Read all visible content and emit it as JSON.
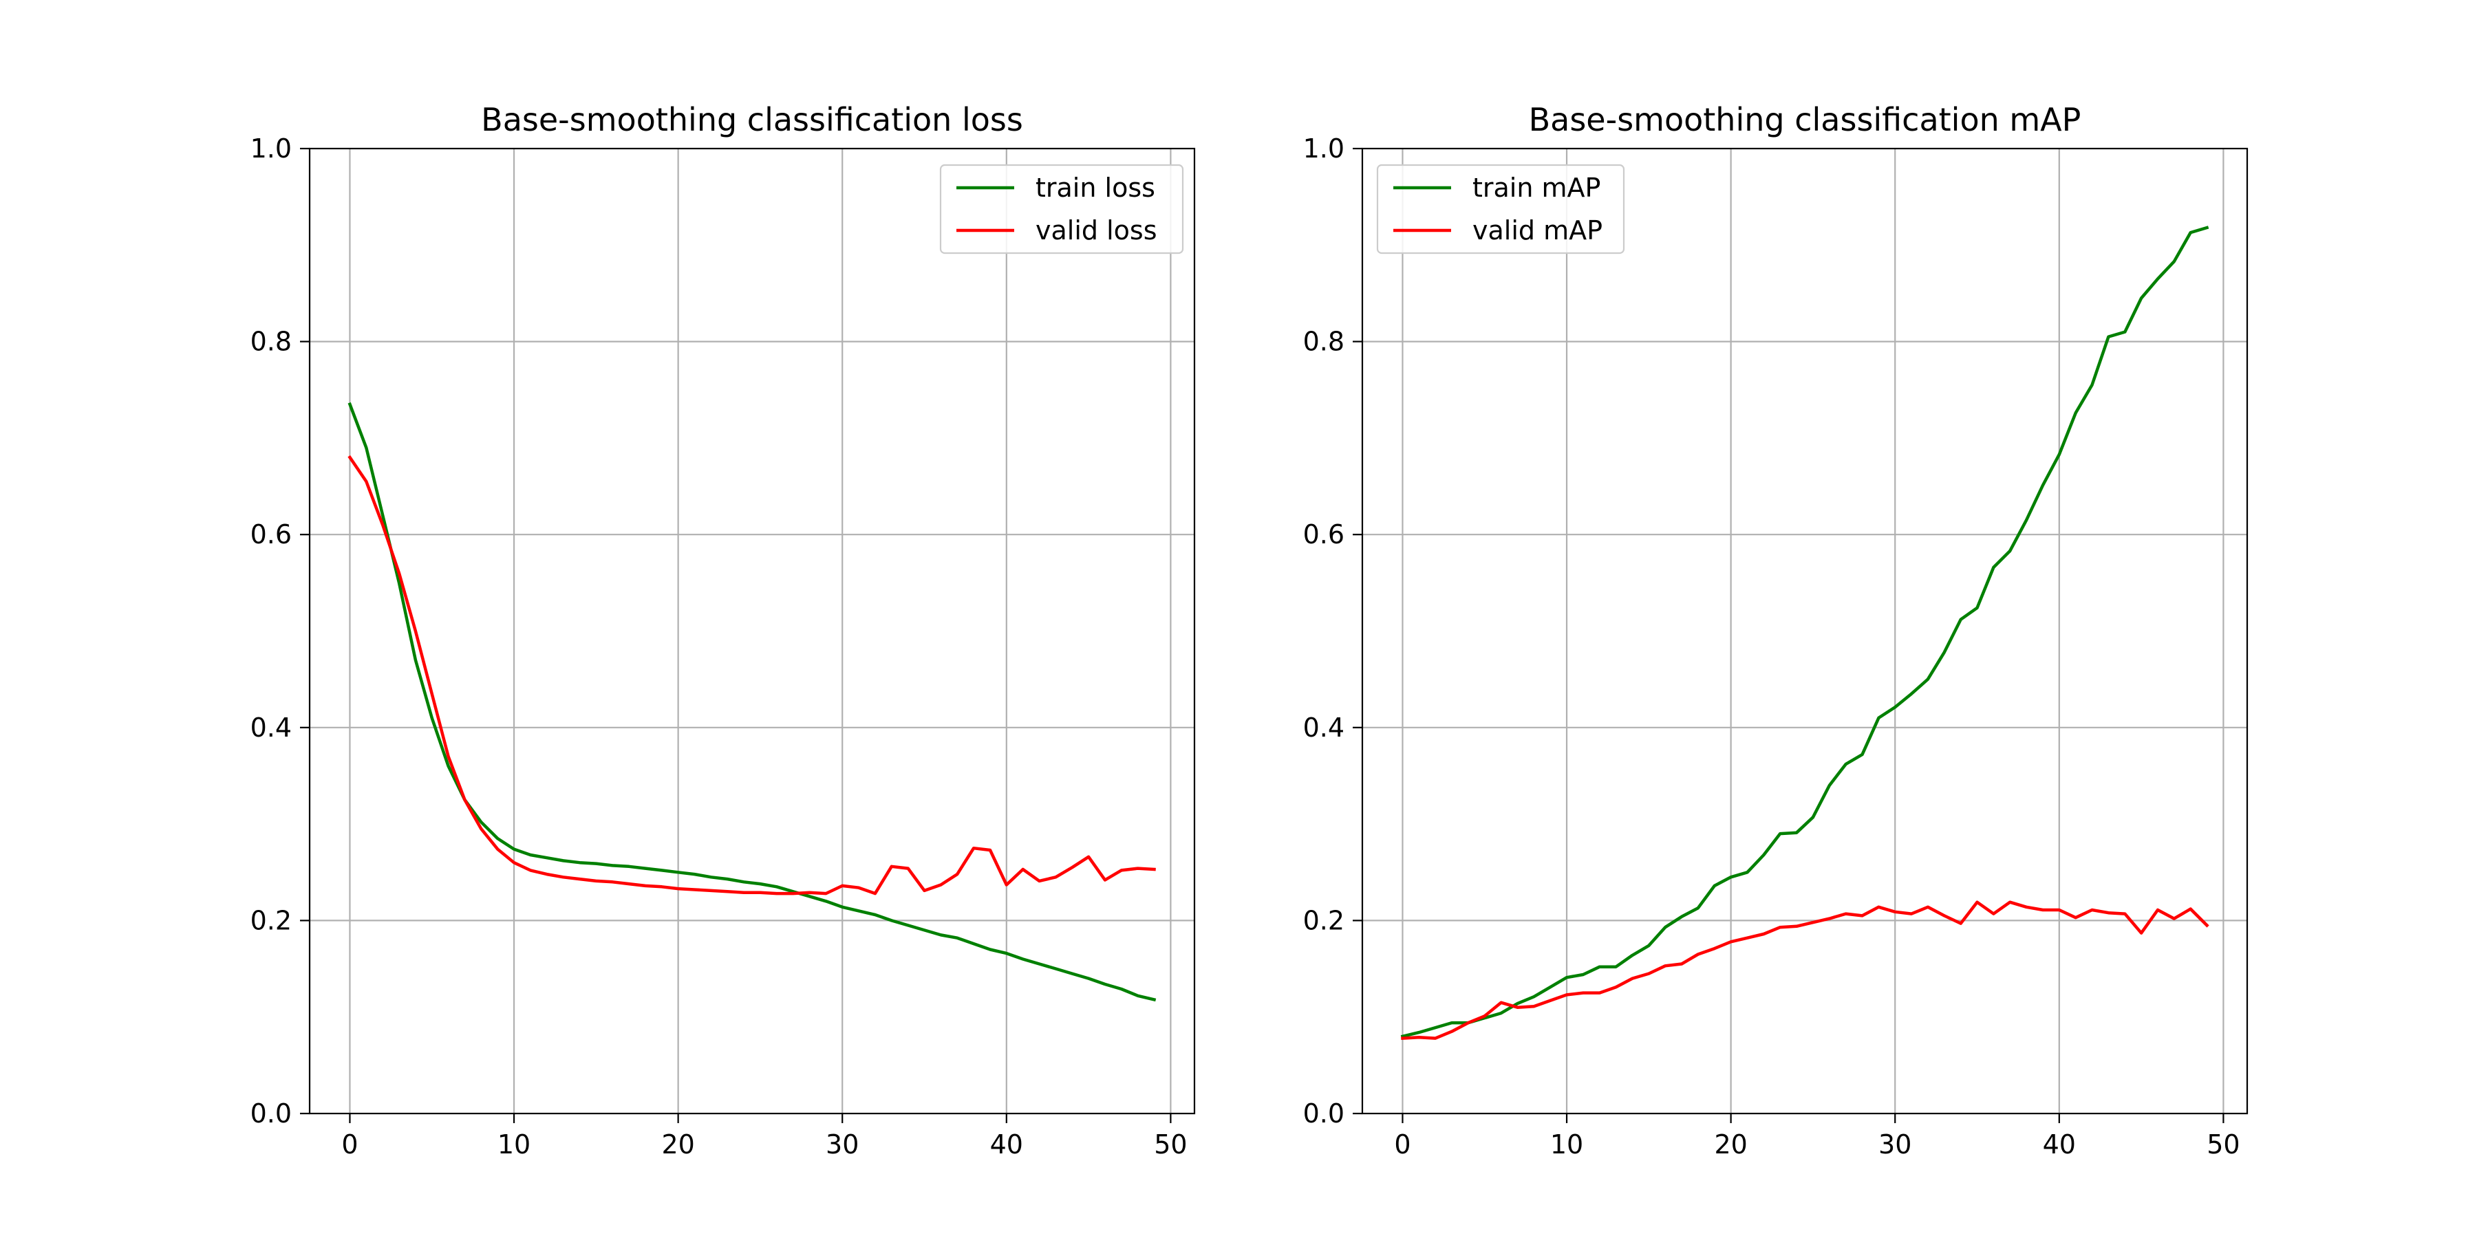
{
  "chart_data": [
    {
      "type": "line",
      "title": "Base-smoothing classification loss",
      "xlabel": "",
      "ylabel": "",
      "xlim": [
        -2.45,
        51.45
      ],
      "ylim": [
        0,
        1.0
      ],
      "xticks": [
        "0",
        "10",
        "20",
        "30",
        "40",
        "50"
      ],
      "yticks": [
        "0.0",
        "0.2",
        "0.4",
        "0.6",
        "0.8",
        "1.0"
      ],
      "grid": true,
      "legend_position": "upper right",
      "x": [
        0,
        1,
        2,
        3,
        4,
        5,
        6,
        7,
        8,
        9,
        10,
        11,
        12,
        13,
        14,
        15,
        16,
        17,
        18,
        19,
        20,
        21,
        22,
        23,
        24,
        25,
        26,
        27,
        28,
        29,
        30,
        31,
        32,
        33,
        34,
        35,
        36,
        37,
        38,
        39,
        40,
        41,
        42,
        43,
        44,
        45,
        46,
        47,
        48,
        49
      ],
      "series": [
        {
          "name": "train loss",
          "color": "#008000",
          "values": [
            0.735,
            0.69,
            0.62,
            0.55,
            0.47,
            0.41,
            0.36,
            0.325,
            0.302,
            0.285,
            0.274,
            0.268,
            0.265,
            0.262,
            0.26,
            0.259,
            0.257,
            0.256,
            0.254,
            0.252,
            0.25,
            0.248,
            0.245,
            0.243,
            0.24,
            0.238,
            0.235,
            0.23,
            0.225,
            0.22,
            0.214,
            0.21,
            0.206,
            0.2,
            0.195,
            0.19,
            0.185,
            0.182,
            0.176,
            0.17,
            0.166,
            0.16,
            0.155,
            0.15,
            0.145,
            0.14,
            0.134,
            0.129,
            0.122,
            0.118
          ]
        },
        {
          "name": "valid loss",
          "color": "#ff0000",
          "values": [
            0.68,
            0.655,
            0.61,
            0.56,
            0.5,
            0.435,
            0.37,
            0.325,
            0.295,
            0.274,
            0.26,
            0.252,
            0.248,
            0.245,
            0.243,
            0.241,
            0.24,
            0.238,
            0.236,
            0.235,
            0.233,
            0.232,
            0.231,
            0.23,
            0.229,
            0.229,
            0.228,
            0.228,
            0.229,
            0.228,
            0.236,
            0.234,
            0.228,
            0.256,
            0.254,
            0.231,
            0.237,
            0.248,
            0.275,
            0.273,
            0.237,
            0.253,
            0.241,
            0.245,
            0.255,
            0.266,
            0.242,
            0.252,
            0.254,
            0.253
          ]
        }
      ]
    },
    {
      "type": "line",
      "title": "Base-smoothing classification mAP",
      "xlabel": "",
      "ylabel": "",
      "xlim": [
        -2.45,
        51.45
      ],
      "ylim": [
        0,
        1.0
      ],
      "xticks": [
        "0",
        "10",
        "20",
        "30",
        "40",
        "50"
      ],
      "yticks": [
        "0.0",
        "0.2",
        "0.4",
        "0.6",
        "0.8",
        "1.0"
      ],
      "grid": true,
      "legend_position": "upper left",
      "x": [
        0,
        1,
        2,
        3,
        4,
        5,
        6,
        7,
        8,
        9,
        10,
        11,
        12,
        13,
        14,
        15,
        16,
        17,
        18,
        19,
        20,
        21,
        22,
        23,
        24,
        25,
        26,
        27,
        28,
        29,
        30,
        31,
        32,
        33,
        34,
        35,
        36,
        37,
        38,
        39,
        40,
        41,
        42,
        43,
        44,
        45,
        46,
        47,
        48,
        49
      ],
      "series": [
        {
          "name": "train mAP",
          "color": "#008000",
          "values": [
            0.08,
            0.084,
            0.089,
            0.094,
            0.094,
            0.099,
            0.104,
            0.114,
            0.121,
            0.131,
            0.141,
            0.144,
            0.152,
            0.152,
            0.164,
            0.174,
            0.193,
            0.204,
            0.213,
            0.236,
            0.245,
            0.25,
            0.268,
            0.29,
            0.291,
            0.307,
            0.34,
            0.362,
            0.372,
            0.41,
            0.421,
            0.435,
            0.45,
            0.478,
            0.512,
            0.524,
            0.566,
            0.583,
            0.615,
            0.651,
            0.683,
            0.726,
            0.755,
            0.805,
            0.81,
            0.845,
            0.865,
            0.883,
            0.913,
            0.918
          ]
        },
        {
          "name": "valid mAP",
          "color": "#ff0000",
          "values": [
            0.078,
            0.079,
            0.078,
            0.085,
            0.094,
            0.101,
            0.115,
            0.11,
            0.111,
            0.117,
            0.123,
            0.125,
            0.125,
            0.131,
            0.14,
            0.145,
            0.153,
            0.155,
            0.165,
            0.171,
            0.178,
            0.182,
            0.186,
            0.193,
            0.194,
            0.198,
            0.202,
            0.207,
            0.205,
            0.214,
            0.209,
            0.207,
            0.214,
            0.205,
            0.197,
            0.219,
            0.207,
            0.219,
            0.214,
            0.211,
            0.211,
            0.203,
            0.211,
            0.208,
            0.207,
            0.187,
            0.211,
            0.202,
            0.212,
            0.195
          ]
        }
      ]
    }
  ]
}
